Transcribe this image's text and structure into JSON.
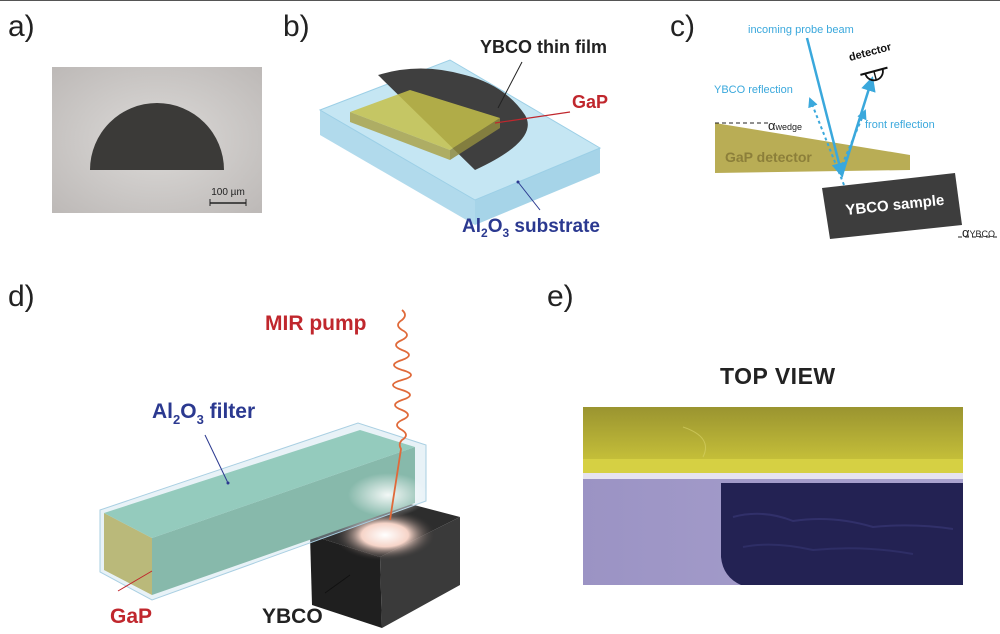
{
  "panels": {
    "a": {
      "label": "a)",
      "scale_bar": "100 µm"
    },
    "b": {
      "label": "b)",
      "ybco_film": "YBCO thin film",
      "gap": "GaP",
      "substrate_prefix": "Al",
      "substrate_sub1": "2",
      "substrate_o": "O",
      "substrate_sub2": "3",
      "substrate_suffix": " substrate"
    },
    "c": {
      "label": "c)",
      "incoming": "incoming probe beam",
      "detector": "detector",
      "ybco_reflection": "YBCO reflection",
      "front_reflection": "front reflection",
      "alpha": "α",
      "wedge_sub": "wedge",
      "gap_detector": "GaP detector",
      "ybco_sample": "YBCO sample",
      "ybco_sub": "YBCO"
    },
    "d": {
      "label": "d)",
      "mir_pump": "MIR pump",
      "filter_prefix": "Al",
      "filter_sub1": "2",
      "filter_o": "O",
      "filter_sub2": "3",
      "filter_suffix": " filter",
      "gap": "GaP",
      "ybco": "YBCO"
    },
    "e": {
      "label": "e)",
      "top_view": "TOP VIEW"
    }
  },
  "colors": {
    "cyan": "#3aa8dc",
    "red": "#c0272d",
    "navy": "#2b3990",
    "gap_olive": "#b9ad55",
    "dark": "#3a3a3a"
  }
}
